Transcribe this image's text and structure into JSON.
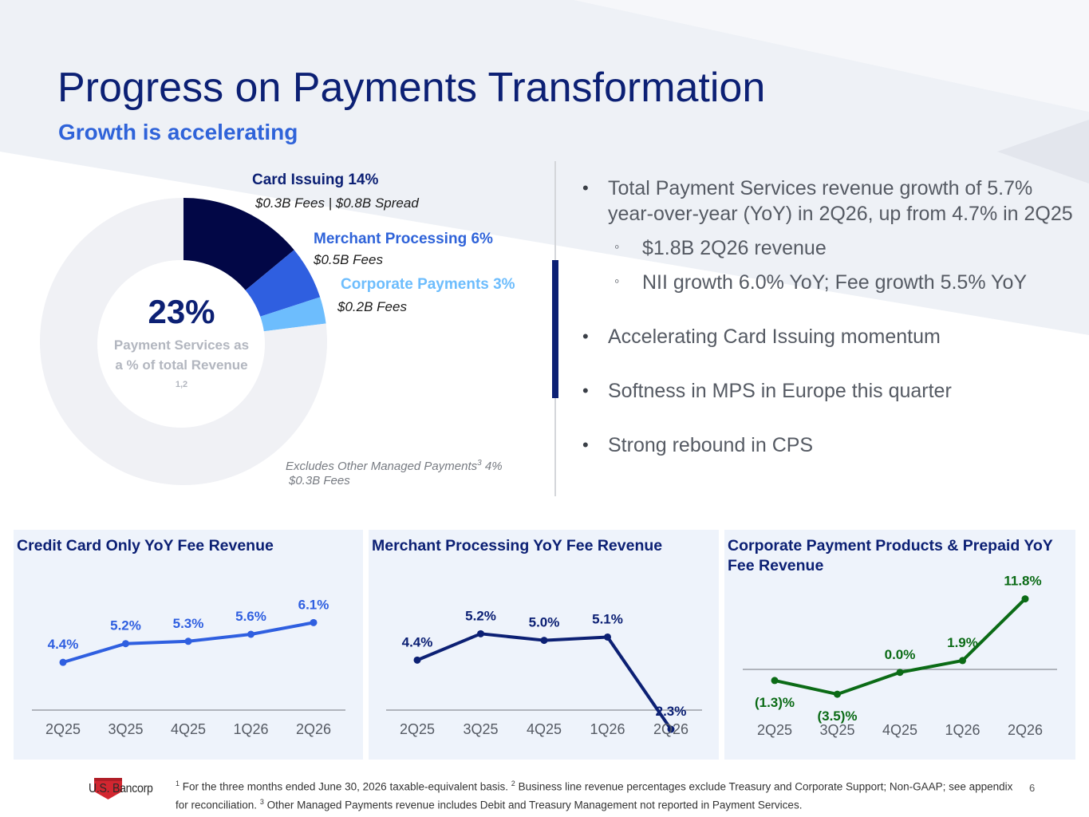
{
  "title": "Progress on Payments Transformation",
  "subtitle": "Growth is accelerating",
  "donut": {
    "center_value": "23%",
    "center_label": "Payment Services as a % of total Revenue",
    "center_label_sup": "1,2",
    "exclusion_note_prefix": "Excludes Other Managed Payments",
    "exclusion_note_sup": "3",
    "exclusion_note_suffix": " 4%",
    "exclusion_note_fees": "$0.3B Fees",
    "colors": {
      "card_issuing": "#020746",
      "merchant_processing": "#2f5fe0",
      "corporate_payments": "#6dbdfd",
      "remainder": "#f0f1f5"
    }
  },
  "chart_data": [
    {
      "type": "pie",
      "title": "",
      "categories": [
        "Card Issuing",
        "Merchant Processing",
        "Corporate Payments",
        "Other"
      ],
      "values": [
        14,
        6,
        3,
        77
      ],
      "labels": [
        {
          "name": "Card Issuing 14%",
          "detail": "$0.3B Fees | $0.8B Spread",
          "color": "#0c2074"
        },
        {
          "name": "Merchant Processing 6%",
          "detail": "$0.5B Fees",
          "color": "#2f63d9"
        },
        {
          "name": "Corporate Payments 3%",
          "detail": "$0.2B Fees",
          "color": "#6dbdfd"
        }
      ]
    },
    {
      "type": "line",
      "title": "Credit Card Only YoY Fee Revenue",
      "categories": [
        "2Q25",
        "3Q25",
        "4Q25",
        "1Q26",
        "2Q26"
      ],
      "values": [
        4.4,
        5.2,
        5.3,
        5.6,
        6.1
      ],
      "data_labels": [
        "4.4%",
        "5.2%",
        "5.3%",
        "5.6%",
        "6.1%"
      ],
      "color": "#2f5fe0",
      "ylim": [
        0,
        7
      ]
    },
    {
      "type": "line",
      "title": "Merchant Processing YoY Fee Revenue",
      "categories": [
        "2Q25",
        "3Q25",
        "4Q25",
        "1Q26",
        "2Q26"
      ],
      "values": [
        4.4,
        5.2,
        5.0,
        5.1,
        2.3
      ],
      "data_labels": [
        "4.4%",
        "5.2%",
        "5.0%",
        "5.1%",
        "2.3%"
      ],
      "color": "#0c2074",
      "ylim": [
        0,
        7
      ]
    },
    {
      "type": "line",
      "title": "Corporate Payment Products & Prepaid YoY Fee Revenue",
      "categories": [
        "2Q25",
        "3Q25",
        "4Q25",
        "1Q26",
        "2Q26"
      ],
      "values": [
        -1.3,
        -3.5,
        0.0,
        1.9,
        11.8
      ],
      "data_labels": [
        "(1.3)%",
        "(3.5)%",
        "0.0%",
        "1.9%",
        "11.8%"
      ],
      "color": "#0b6b16",
      "ylim": [
        -4,
        12
      ]
    }
  ],
  "bullets": [
    {
      "text": "Total Payment Services revenue growth of 5.7% year-over-year (YoY) in 2Q26, up from 4.7% in 2Q25",
      "sub": [
        "$1.8B 2Q26 revenue",
        "NII growth 6.0% YoY; Fee growth 5.5% YoY"
      ]
    },
    {
      "text": "Accelerating Card Issuing momentum",
      "sub": []
    },
    {
      "text": "Softness in MPS in Europe this quarter",
      "sub": []
    },
    {
      "text": "Strong rebound in CPS",
      "sub": []
    }
  ],
  "bullet_marker": "•",
  "sub_bullet_marker": "◦",
  "footer": {
    "logo_text": "U.S. Bancorp",
    "fn1_sup": "1",
    "fn1": " For the three months ended June 30, 2026 taxable-equivalent basis. ",
    "fn2_sup": "2",
    "fn2": " Business line revenue percentages exclude Treasury and Corporate Support; Non-GAAP; see appendix for reconciliation. ",
    "fn3_sup": "3",
    "fn3": " Other Managed Payments revenue includes Debit and Treasury Management not reported in Payment Services.",
    "page_number": "6"
  }
}
